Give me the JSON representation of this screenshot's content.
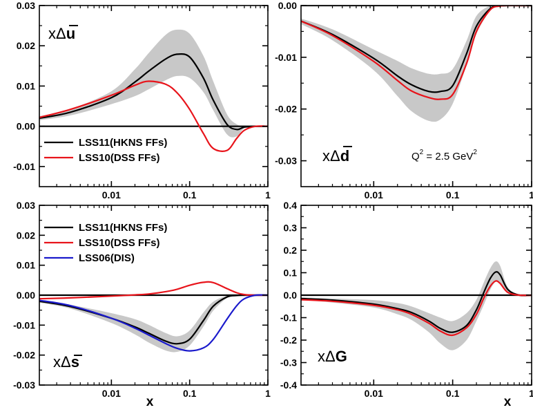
{
  "x_tick_labels": [
    "0.01",
    "0.1",
    "1"
  ],
  "x_axis_title": "x",
  "annotation": {
    "q2_base": "Q",
    "q2_exp": "2",
    "q2_rest": " = 2.5 GeV",
    "q2_rest_exp": "2"
  },
  "legend_entries": {
    "lss11": "LSS11(HKNS FFs)",
    "lss10": "LSS10(DSS FFs)",
    "lss06": "LSS06(DIS)"
  },
  "colors": {
    "lss11": "#000000",
    "lss10": "#e8141b",
    "lss06": "#1a1acc",
    "band": "#c8c8c8"
  },
  "chart_data": [
    {
      "type": "line",
      "label": "xΔū",
      "xscale": "log",
      "xlim": [
        0.0012,
        1
      ],
      "ylim": [
        -0.015,
        0.03
      ],
      "yticks": [
        "0.03",
        "0.02",
        "0.01",
        "0.00",
        "-0.01"
      ],
      "ytick_values": [
        0.03,
        0.02,
        0.01,
        0.0,
        -0.01
      ],
      "legend": [
        "lss11",
        "lss10"
      ],
      "x": [
        0.0012,
        0.003,
        0.01,
        0.02,
        0.03,
        0.05,
        0.07,
        0.1,
        0.15,
        0.2,
        0.3,
        0.4,
        0.5,
        0.7,
        1.0
      ],
      "band": {
        "lower": [
          0.0015,
          0.0027,
          0.0055,
          0.0075,
          0.0092,
          0.0115,
          0.0125,
          0.012,
          0.0085,
          0.004,
          -0.002,
          -0.0025,
          -0.0005,
          0.0,
          0.0
        ],
        "upper": [
          0.0025,
          0.0043,
          0.0087,
          0.0142,
          0.0182,
          0.0228,
          0.024,
          0.023,
          0.0175,
          0.0112,
          0.003,
          0.0005,
          0.0,
          0.0,
          0.0
        ]
      },
      "series": [
        {
          "name": "LSS11(HKNS FFs)",
          "key": "lss11",
          "values": [
            0.002,
            0.0035,
            0.0071,
            0.011,
            0.0137,
            0.0168,
            0.0179,
            0.0172,
            0.012,
            0.0065,
            0.0005,
            -0.0008,
            -0.0002,
            0.0,
            0.0
          ]
        },
        {
          "name": "LSS10(DSS FFs)",
          "key": "lss10",
          "values": [
            0.0022,
            0.0042,
            0.0077,
            0.0102,
            0.0112,
            0.0104,
            0.0082,
            0.0042,
            -0.0018,
            -0.0055,
            -0.006,
            -0.003,
            -0.001,
            0.0,
            0.0
          ]
        }
      ]
    },
    {
      "type": "line",
      "label": "xΔd̄",
      "xscale": "log",
      "xlim": [
        0.0012,
        1
      ],
      "ylim": [
        -0.035,
        0.0
      ],
      "yticks": [
        "0.00",
        "-0.01",
        "-0.02",
        "-0.03"
      ],
      "ytick_values": [
        0.0,
        -0.01,
        -0.02,
        -0.03
      ],
      "legend": [],
      "x": [
        0.0012,
        0.003,
        0.01,
        0.02,
        0.03,
        0.05,
        0.07,
        0.1,
        0.15,
        0.2,
        0.3,
        0.4,
        0.5,
        0.7,
        1.0
      ],
      "band": {
        "lower": [
          -0.0036,
          -0.0067,
          -0.0125,
          -0.0175,
          -0.0204,
          -0.0223,
          -0.022,
          -0.019,
          -0.0115,
          -0.0055,
          -0.001,
          -0.0002,
          0.0,
          0.0,
          0.0
        ],
        "upper": [
          -0.0025,
          -0.0046,
          -0.0085,
          -0.0107,
          -0.0121,
          -0.0132,
          -0.0132,
          -0.0123,
          -0.0068,
          -0.002,
          0.0,
          0.0,
          0.0,
          0.0,
          0.0
        ]
      },
      "series": [
        {
          "name": "LSS11(HKNS FFs)",
          "key": "lss11",
          "values": [
            -0.003,
            -0.0056,
            -0.0102,
            -0.0136,
            -0.0153,
            -0.0166,
            -0.0166,
            -0.0155,
            -0.0093,
            -0.004,
            -0.0006,
            -0.0001,
            0.0,
            0.0,
            0.0
          ]
        },
        {
          "name": "LSS10(DSS FFs)",
          "key": "lss10",
          "values": [
            -0.003,
            -0.0058,
            -0.0108,
            -0.0145,
            -0.0165,
            -0.0178,
            -0.0181,
            -0.0172,
            -0.0112,
            -0.005,
            -0.0008,
            -0.0001,
            0.0,
            0.0,
            0.0
          ]
        }
      ],
      "annotation": true
    },
    {
      "type": "line",
      "label": "xΔs̄",
      "xscale": "log",
      "xlim": [
        0.0012,
        1
      ],
      "ylim": [
        -0.03,
        0.03
      ],
      "yticks": [
        "0.03",
        "0.02",
        "0.01",
        "0.00",
        "-0.01",
        "-0.02",
        "-0.03"
      ],
      "ytick_values": [
        0.03,
        0.02,
        0.01,
        0.0,
        -0.01,
        -0.02,
        -0.03
      ],
      "legend": [
        "lss11",
        "lss10",
        "lss06"
      ],
      "x": [
        0.0012,
        0.003,
        0.01,
        0.02,
        0.03,
        0.05,
        0.07,
        0.1,
        0.15,
        0.2,
        0.3,
        0.4,
        0.5,
        0.7,
        1.0
      ],
      "band": {
        "lower": [
          -0.0025,
          -0.0045,
          -0.0093,
          -0.0131,
          -0.0158,
          -0.0185,
          -0.0189,
          -0.0168,
          -0.0105,
          -0.0052,
          -0.001,
          -0.0002,
          0.0,
          0.0,
          0.0
        ],
        "upper": [
          -0.0015,
          -0.0032,
          -0.006,
          -0.008,
          -0.0099,
          -0.0127,
          -0.0137,
          -0.0118,
          -0.0058,
          -0.0022,
          -0.0002,
          0.0,
          0.0,
          0.0,
          0.0
        ]
      },
      "series": [
        {
          "name": "LSS11(HKNS FFs)",
          "key": "lss11",
          "values": [
            -0.002,
            -0.0038,
            -0.0077,
            -0.0106,
            -0.0127,
            -0.0154,
            -0.0162,
            -0.0147,
            -0.0085,
            -0.0037,
            -0.0006,
            -0.0001,
            0.0,
            0.0,
            0.0
          ]
        },
        {
          "name": "LSS10(DSS FFs)",
          "key": "lss10",
          "values": [
            -0.0012,
            -0.0009,
            -0.0003,
            0.0001,
            0.0004,
            0.0012,
            0.002,
            0.0033,
            0.0043,
            0.0042,
            0.0022,
            0.0008,
            0.0002,
            0.0,
            0.0
          ]
        },
        {
          "name": "LSS06(DIS)",
          "key": "lss06",
          "values": [
            -0.0017,
            -0.0035,
            -0.0077,
            -0.011,
            -0.0133,
            -0.0162,
            -0.0178,
            -0.0186,
            -0.0176,
            -0.0148,
            -0.008,
            -0.0035,
            -0.0012,
            0.0,
            0.0
          ]
        }
      ]
    },
    {
      "type": "line",
      "label": "xΔG",
      "xscale": "log",
      "xlim": [
        0.0012,
        1
      ],
      "ylim": [
        -0.4,
        0.4
      ],
      "yticks": [
        "0.4",
        "0.3",
        "0.2",
        "0.1",
        "0.0",
        "-0.1",
        "-0.2",
        "-0.3",
        "-0.4"
      ],
      "ytick_values": [
        0.4,
        0.3,
        0.2,
        0.1,
        0.0,
        -0.1,
        -0.2,
        -0.3,
        -0.4
      ],
      "legend": [],
      "x": [
        0.0012,
        0.003,
        0.01,
        0.02,
        0.03,
        0.05,
        0.07,
        0.1,
        0.15,
        0.2,
        0.25,
        0.3,
        0.35,
        0.4,
        0.5,
        0.7,
        1.0
      ],
      "band": {
        "lower": [
          -0.02,
          -0.033,
          -0.055,
          -0.085,
          -0.11,
          -0.165,
          -0.215,
          -0.245,
          -0.2,
          -0.115,
          -0.04,
          0.025,
          0.06,
          0.05,
          0.015,
          0.0,
          0.0
        ],
        "upper": [
          -0.01,
          -0.015,
          -0.022,
          -0.035,
          -0.05,
          -0.08,
          -0.1,
          -0.115,
          -0.08,
          -0.02,
          0.06,
          0.12,
          0.15,
          0.13,
          0.035,
          0.0,
          0.0
        ]
      },
      "series": [
        {
          "name": "LSS11(HKNS FFs)",
          "key": "lss11",
          "values": [
            -0.015,
            -0.022,
            -0.04,
            -0.06,
            -0.077,
            -0.115,
            -0.148,
            -0.165,
            -0.135,
            -0.065,
            0.015,
            0.075,
            0.103,
            0.09,
            0.025,
            0.0,
            0.0
          ]
        },
        {
          "name": "LSS10(DSS FFs)",
          "key": "lss10",
          "values": [
            -0.02,
            -0.027,
            -0.045,
            -0.065,
            -0.085,
            -0.125,
            -0.16,
            -0.178,
            -0.145,
            -0.085,
            -0.01,
            0.04,
            0.063,
            0.052,
            0.012,
            0.0,
            0.0
          ]
        }
      ]
    }
  ]
}
